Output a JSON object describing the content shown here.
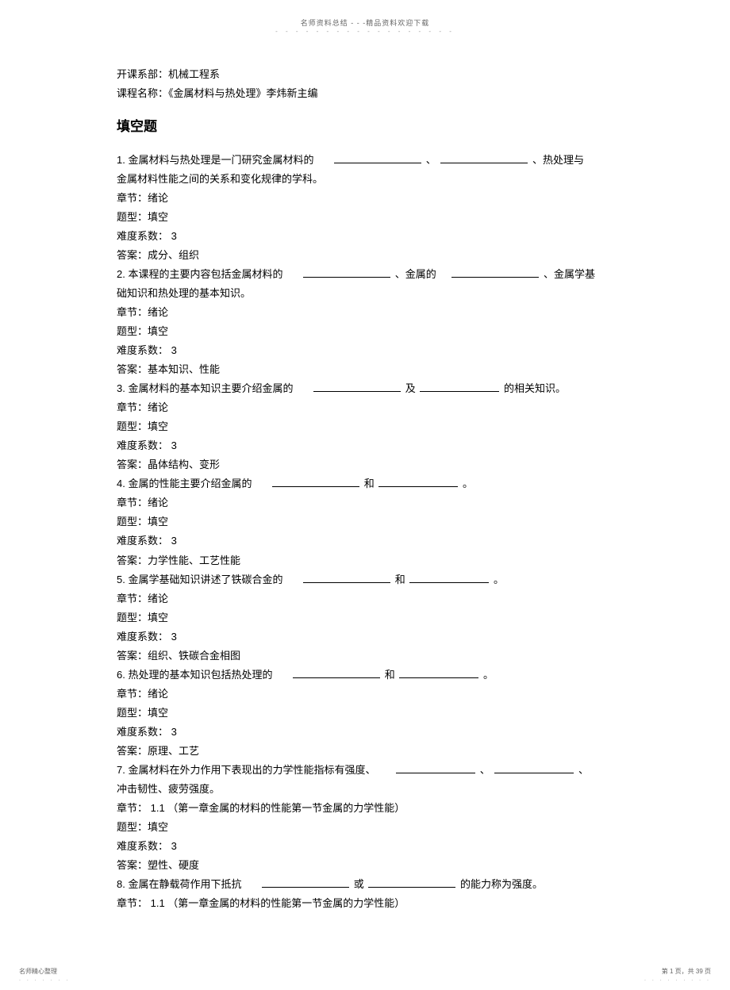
{
  "header": {
    "text": "名师资料总结 - - -精品资料欢迎下载",
    "dots": "- - - - - - - - - - - - - - - - - -"
  },
  "intro": {
    "department": "开课系部：机械工程系",
    "course": "课程名称：《金属材料与热处理》李炜新主编"
  },
  "sectionTitle": "填空题",
  "questions": [
    {
      "num": "1.",
      "textBefore": "金属材料与热处理是一门研究金属材料的",
      "textMid1": "、",
      "textAfter": "、热处理与",
      "line2": "金属材料性能之间的关系和变化规律的学科。",
      "chapter": "章节：绪论",
      "type": "题型：填空",
      "difficulty": "难度系数： 3",
      "answer": "答案：成分、组织"
    },
    {
      "num": "2.",
      "textBefore": "本课程的主要内容包括金属材料的",
      "textMid1": "、金属的",
      "textAfter": "、金属学基",
      "line2": "础知识和热处理的基本知识。",
      "chapter": "章节：绪论",
      "type": "题型：填空",
      "difficulty": "难度系数： 3",
      "answer": "答案：基本知识、性能"
    },
    {
      "num": "3.",
      "textBefore": "金属材料的基本知识主要介绍金属的",
      "textMid1": "及",
      "textAfter": "的相关知识。",
      "chapter": "章节：绪论",
      "type": "题型：填空",
      "difficulty": "难度系数： 3",
      "answer": "答案：晶体结构、变形"
    },
    {
      "num": "4.",
      "textBefore": "金属的性能主要介绍金属的",
      "textMid1": "和",
      "textAfter": "。",
      "chapter": "章节：绪论",
      "type": "题型：填空",
      "difficulty": "难度系数： 3",
      "answer": "答案：力学性能、工艺性能"
    },
    {
      "num": "5.",
      "textBefore": "金属学基础知识讲述了铁碳合金的",
      "textMid1": "和",
      "textAfter": "。",
      "chapter": "章节：绪论",
      "type": "题型：填空",
      "difficulty": "难度系数： 3",
      "answer": "答案：组织、铁碳合金相图"
    },
    {
      "num": "6.",
      "textBefore": "热处理的基本知识包括热处理的",
      "textMid1": "和",
      "textAfter": "。",
      "chapter": "章节：绪论",
      "type": "题型：填空",
      "difficulty": "难度系数： 3",
      "answer": "答案：原理、工艺"
    },
    {
      "num": "7.",
      "textBefore": "金属材料在外力作用下表现出的力学性能指标有强度、",
      "textMid1": "、",
      "textAfter": "、",
      "line2": "冲击韧性、疲劳强度。",
      "chapter": "章节： 1.1 （第一章金属的材料的性能第一节金属的力学性能）",
      "type": "题型：填空",
      "difficulty": "难度系数： 3",
      "answer": "答案：塑性、硬度"
    },
    {
      "num": "8.",
      "textBefore": "金属在静载荷作用下抵抗",
      "textMid1": "或",
      "textAfter": "的能力称为强度。",
      "chapter": "章节： 1.1 （第一章金属的材料的性能第一节金属的力学性能）"
    }
  ],
  "footer": {
    "left": "名师精心整理",
    "right": "第 1 页，共 39 页",
    "dotsLeft": ". . . . . . .",
    "dotsRight": ". . . . . . . . ."
  }
}
